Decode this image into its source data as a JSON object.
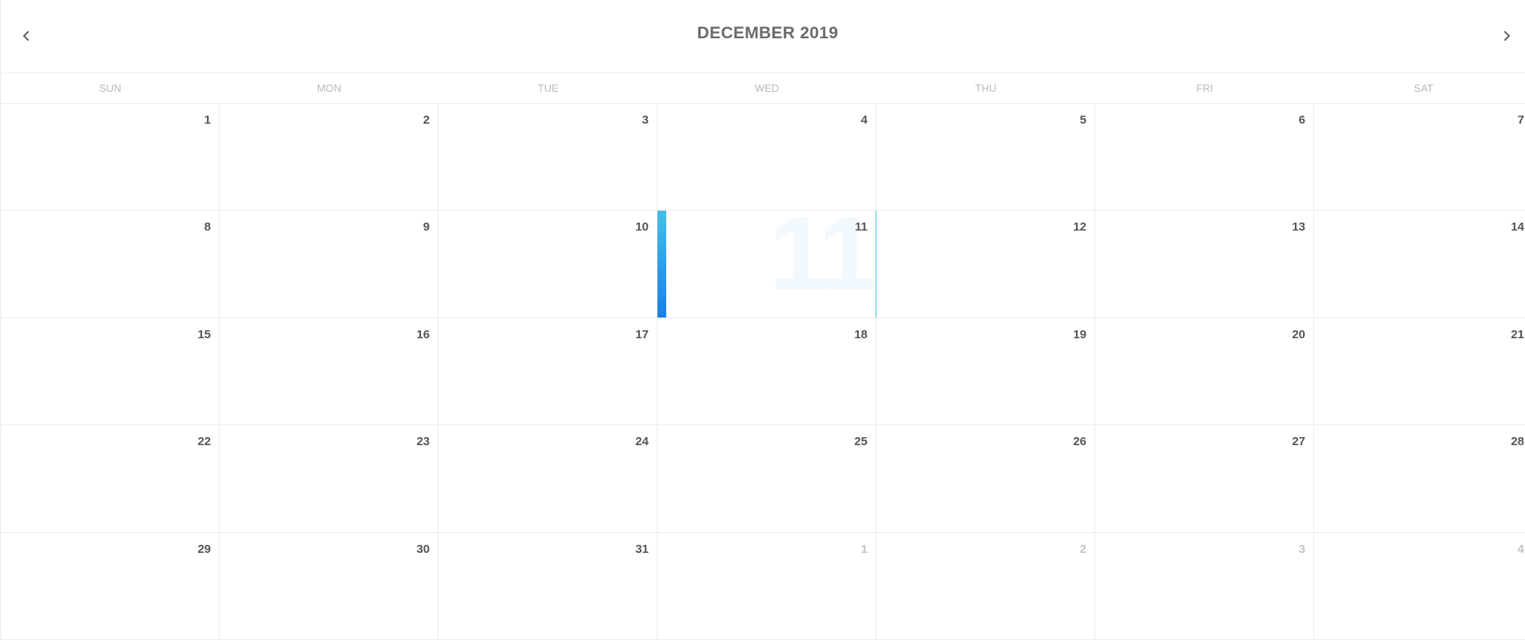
{
  "header": {
    "title": "DECEMBER 2019",
    "prev_icon": "chevron-left-icon",
    "next_icon": "chevron-right-icon"
  },
  "weekdays": [
    "SUN",
    "MON",
    "TUE",
    "WED",
    "THU",
    "FRI",
    "SAT"
  ],
  "today": {
    "date": "11",
    "ghost_label": "11",
    "accent_colors": [
      "#45bfe9",
      "#1a7fe8"
    ]
  },
  "days": [
    {
      "num": "1"
    },
    {
      "num": "2"
    },
    {
      "num": "3"
    },
    {
      "num": "4"
    },
    {
      "num": "5"
    },
    {
      "num": "6"
    },
    {
      "num": "7"
    },
    {
      "num": "8"
    },
    {
      "num": "9"
    },
    {
      "num": "10"
    },
    {
      "num": "11",
      "today": true
    },
    {
      "num": "12"
    },
    {
      "num": "13"
    },
    {
      "num": "14"
    },
    {
      "num": "15"
    },
    {
      "num": "16"
    },
    {
      "num": "17"
    },
    {
      "num": "18"
    },
    {
      "num": "19"
    },
    {
      "num": "20"
    },
    {
      "num": "21"
    },
    {
      "num": "22"
    },
    {
      "num": "23"
    },
    {
      "num": "24"
    },
    {
      "num": "25"
    },
    {
      "num": "26"
    },
    {
      "num": "27"
    },
    {
      "num": "28"
    },
    {
      "num": "29"
    },
    {
      "num": "30"
    },
    {
      "num": "31"
    },
    {
      "num": "1",
      "other_month": true
    },
    {
      "num": "2",
      "other_month": true
    },
    {
      "num": "3",
      "other_month": true
    },
    {
      "num": "4",
      "other_month": true
    }
  ]
}
